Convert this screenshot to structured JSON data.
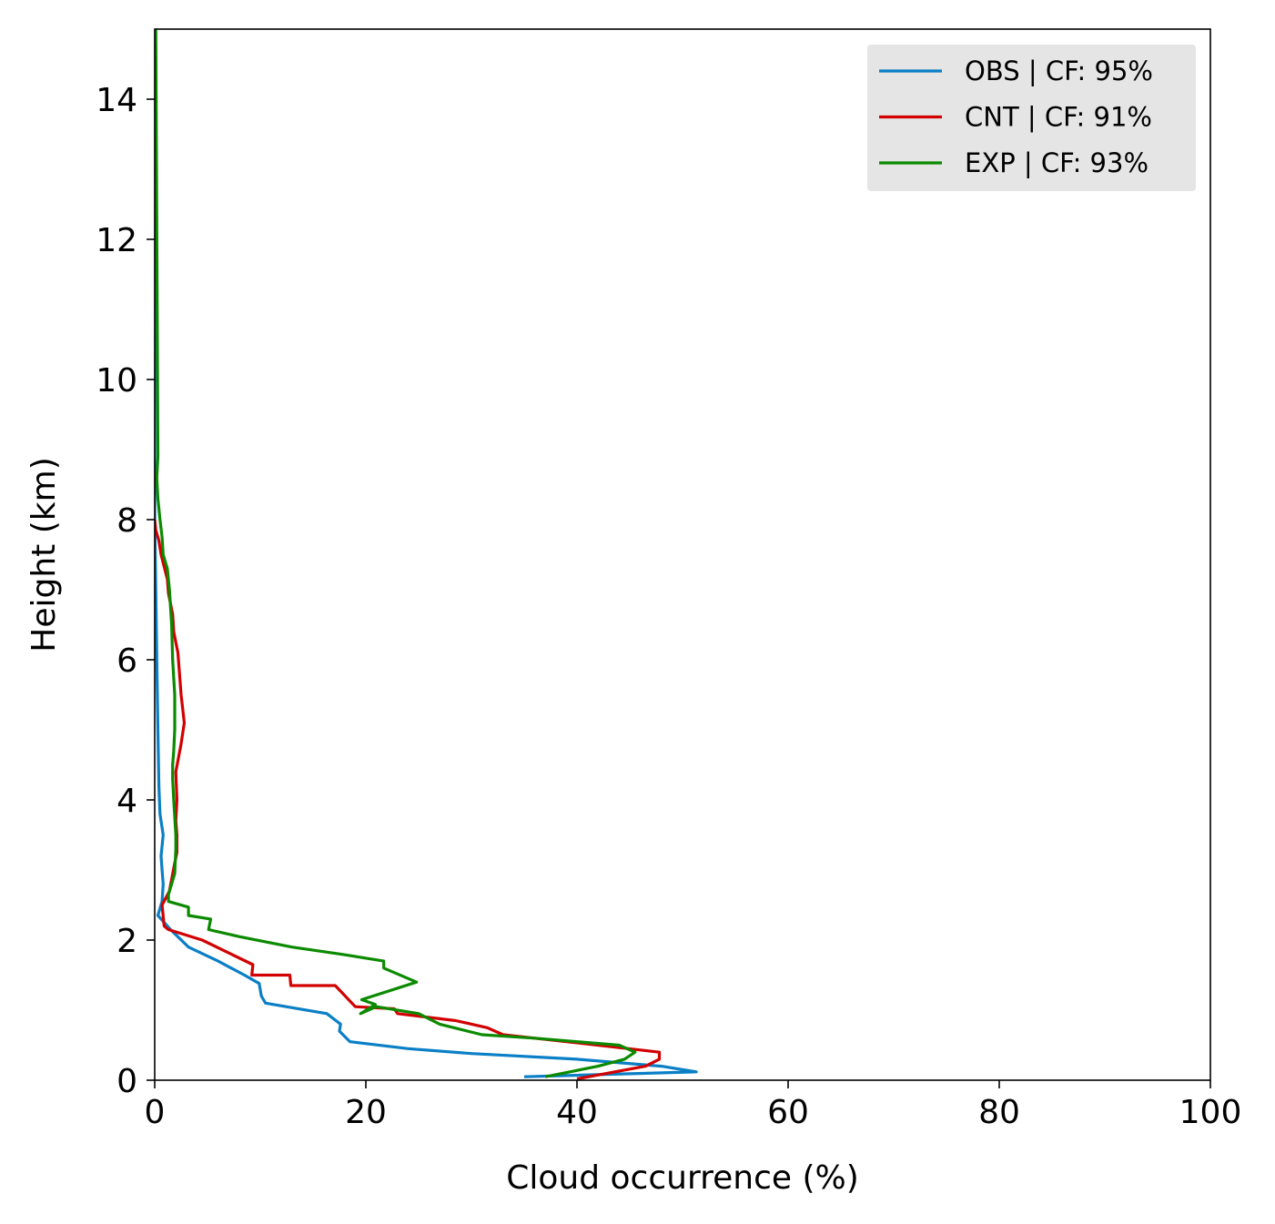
{
  "chart_data": {
    "type": "line",
    "title": "",
    "xlabel": "Cloud occurrence (%)",
    "ylabel": "Height (km)",
    "xlim": [
      0,
      100
    ],
    "ylim": [
      0,
      15
    ],
    "xticks": [
      0,
      20,
      40,
      60,
      80,
      100
    ],
    "yticks": [
      0,
      2,
      4,
      6,
      8,
      10,
      12,
      14
    ],
    "grid": false,
    "legend_position": "top-right",
    "series": [
      {
        "name": "OBS | CF: 95%",
        "color": "#0a7fc6",
        "x": [
          35.0,
          51.3,
          48.0,
          40.0,
          30.0,
          24.0,
          18.5,
          17.5,
          17.6,
          16.3,
          10.5,
          10.1,
          9.9,
          8.5,
          6.0,
          3.2,
          1.5,
          0.3,
          0.7,
          0.8,
          0.7,
          0.6,
          0.8,
          0.5,
          0.4,
          0.3,
          0.2,
          0.1,
          0.0,
          0.0
        ],
        "y": [
          0.05,
          0.12,
          0.2,
          0.3,
          0.38,
          0.45,
          0.55,
          0.7,
          0.8,
          0.95,
          1.1,
          1.2,
          1.38,
          1.5,
          1.7,
          1.9,
          2.15,
          2.35,
          2.55,
          2.8,
          3.0,
          3.2,
          3.5,
          3.8,
          4.2,
          5.0,
          6.0,
          7.0,
          8.0,
          15.0
        ]
      },
      {
        "name": "CNT | CF: 91%",
        "color": "#d20000",
        "x": [
          40.0,
          46.5,
          47.8,
          47.8,
          42.0,
          33.0,
          31.5,
          28.5,
          23.0,
          22.7,
          19.0,
          17.1,
          12.9,
          12.8,
          9.2,
          9.3,
          4.5,
          1.3,
          0.9,
          0.7,
          1.4,
          1.9,
          2.1,
          2.1,
          2.0,
          2.1,
          2.0,
          2.5,
          2.8,
          2.5,
          2.2,
          1.8,
          1.7,
          1.3,
          1.2,
          0.6,
          0.4,
          0.1,
          0.0
        ],
        "y": [
          0.02,
          0.2,
          0.3,
          0.4,
          0.5,
          0.65,
          0.75,
          0.85,
          0.95,
          1.02,
          1.05,
          1.35,
          1.35,
          1.5,
          1.5,
          1.65,
          2.0,
          2.15,
          2.2,
          2.5,
          2.7,
          3.1,
          3.25,
          3.5,
          3.7,
          4.0,
          4.4,
          4.8,
          5.1,
          5.5,
          6.1,
          6.4,
          6.65,
          6.95,
          7.15,
          7.5,
          7.7,
          7.85,
          8.0
        ]
      },
      {
        "name": "EXP | CF: 93%",
        "color": "#0b8a00",
        "x": [
          37.0,
          42.0,
          44.5,
          45.5,
          44.0,
          36.0,
          31.0,
          27.0,
          25.0,
          21.0,
          19.5,
          20.9,
          19.6,
          24.8,
          21.7,
          21.7,
          17.6,
          13.0,
          8.0,
          5.1,
          5.3,
          3.2,
          3.2,
          1.3,
          1.3,
          1.6,
          1.9,
          2.0,
          2.0,
          1.8,
          1.7,
          1.7,
          1.8,
          1.9,
          1.9,
          1.7,
          1.6,
          1.4,
          1.2,
          0.8,
          0.7,
          0.5,
          0.3,
          0.2,
          0.3,
          0.1
        ],
        "y": [
          0.05,
          0.2,
          0.3,
          0.4,
          0.5,
          0.6,
          0.65,
          0.8,
          0.95,
          1.05,
          0.95,
          1.08,
          1.15,
          1.4,
          1.6,
          1.7,
          1.8,
          1.9,
          2.05,
          2.15,
          2.3,
          2.35,
          2.47,
          2.55,
          2.65,
          2.8,
          2.95,
          3.3,
          3.5,
          4.0,
          4.3,
          4.5,
          4.7,
          5.0,
          5.5,
          6.0,
          6.5,
          7.0,
          7.3,
          7.5,
          7.75,
          8.0,
          8.3,
          8.6,
          8.9,
          15.0
        ]
      }
    ]
  }
}
